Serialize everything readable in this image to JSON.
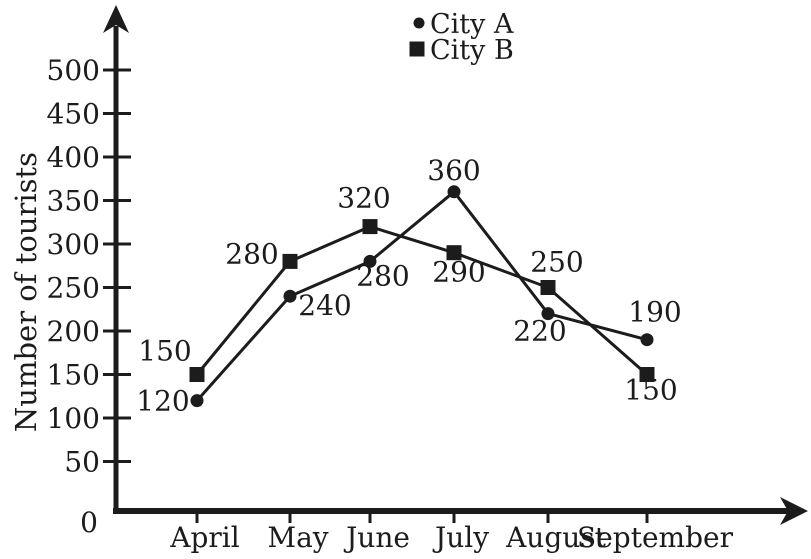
{
  "chart_data": {
    "type": "line",
    "categories": [
      "April",
      "May",
      "June",
      "July",
      "August",
      "September"
    ],
    "series": [
      {
        "name": "City A",
        "marker": "circle",
        "values": [
          120,
          240,
          280,
          360,
          220,
          190
        ]
      },
      {
        "name": "City B",
        "marker": "square",
        "values": [
          150,
          280,
          320,
          290,
          250,
          150
        ]
      }
    ],
    "title": "",
    "xlabel": "",
    "ylabel": "Number of tourists",
    "y_ticks": [
      50,
      100,
      150,
      200,
      250,
      300,
      350,
      400,
      450,
      500
    ],
    "origin_label": "0",
    "ylim": [
      0,
      560
    ],
    "grid": false,
    "data_labels": true,
    "legend_position": "top-center",
    "colors": {
      "ink": "#1c1c1c",
      "background": "#ffffff"
    }
  }
}
